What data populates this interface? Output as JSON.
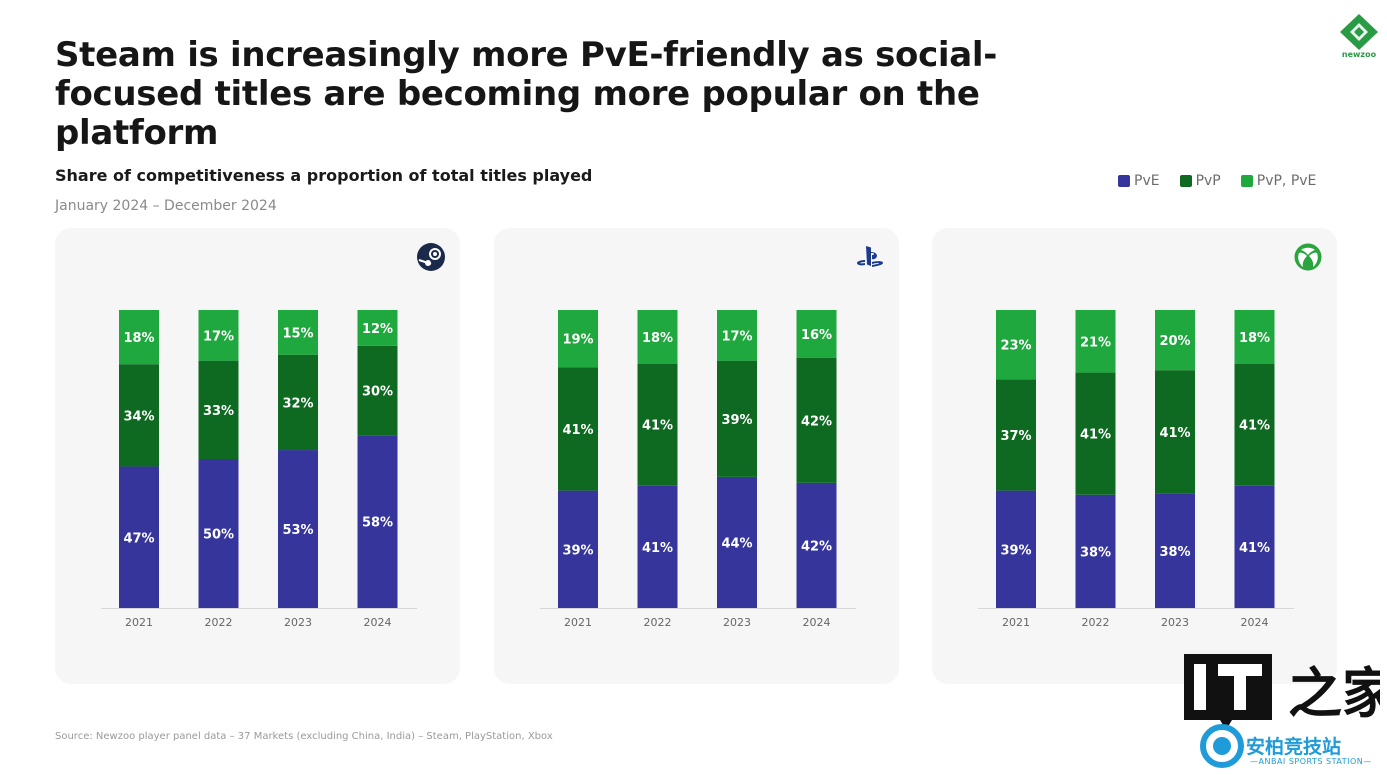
{
  "title": "Steam is increasingly more PvE-friendly as social-focused titles are becoming more popular on the platform",
  "brand": {
    "logo_text": "newzoo",
    "color": "#2a9b45"
  },
  "colors": {
    "PvE": "#35359c",
    "PvP": "#0f6a21",
    "PvP, PvE": "#1fa83d"
  },
  "source": "Source: Newzoo player panel data – 37 Markets (excluding China, India) – Steam, PlayStation, Xbox",
  "watermark": {
    "it_text": "IT",
    "cn_text": "安柏竞技站",
    "en_text": "—ANBAI SPORTS STATION—"
  },
  "chart_data": {
    "type": "bar",
    "stacked": true,
    "title": "Share of competitiveness a proportion of total titles played",
    "subtitle": "January 2024 – December 2024",
    "legend": {
      "position": "top-right",
      "entries": [
        "PvE",
        "PvP",
        "PvP, PvE"
      ]
    },
    "ylim": [
      0,
      100
    ],
    "grid": false,
    "panels": [
      {
        "platform": "Steam",
        "icon": "steam-icon",
        "categories": [
          "2021",
          "2022",
          "2023",
          "2024"
        ],
        "series": [
          {
            "name": "PvE",
            "values": [
              47,
              50,
              53,
              58
            ]
          },
          {
            "name": "PvP",
            "values": [
              34,
              33,
              32,
              30
            ]
          },
          {
            "name": "PvP, PvE",
            "values": [
              18,
              17,
              15,
              12
            ]
          }
        ]
      },
      {
        "platform": "PlayStation",
        "icon": "playstation-icon",
        "categories": [
          "2021",
          "2022",
          "2023",
          "2024"
        ],
        "series": [
          {
            "name": "PvE",
            "values": [
              39,
              41,
              44,
              42
            ]
          },
          {
            "name": "PvP",
            "values": [
              41,
              41,
              39,
              42
            ]
          },
          {
            "name": "PvP, PvE",
            "values": [
              19,
              18,
              17,
              16
            ]
          }
        ]
      },
      {
        "platform": "Xbox",
        "icon": "xbox-icon",
        "categories": [
          "2021",
          "2022",
          "2023",
          "2024"
        ],
        "series": [
          {
            "name": "PvE",
            "values": [
              39,
              38,
              38,
              41
            ]
          },
          {
            "name": "PvP",
            "values": [
              37,
              41,
              41,
              41
            ]
          },
          {
            "name": "PvP, PvE",
            "values": [
              23,
              21,
              20,
              18
            ]
          }
        ]
      }
    ]
  }
}
